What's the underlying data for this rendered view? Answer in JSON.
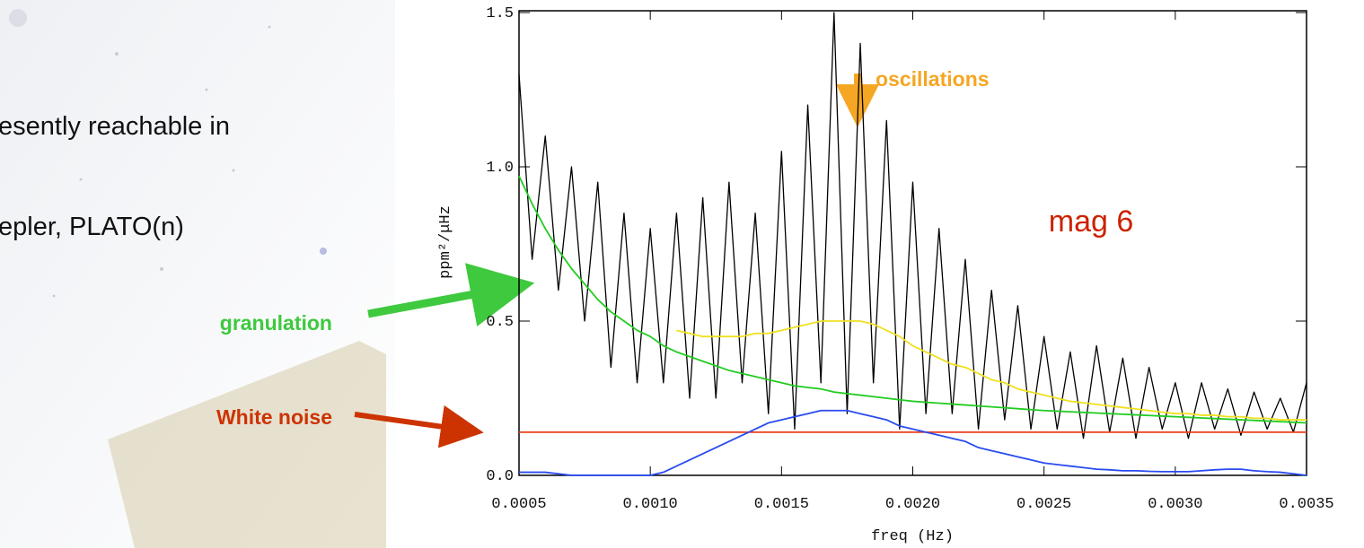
{
  "slide_text": [
    "esently reachable in",
    "epler, PLATO(n)"
  ],
  "chart_data": {
    "type": "line",
    "xlabel": "freq (Hz)",
    "ylabel": "ppm²/μHz",
    "annotations": [
      {
        "text": "oscillations",
        "color": "#f5a623"
      },
      {
        "text": "mag 6",
        "color": "#cc2200"
      },
      {
        "text": "granulation",
        "color": "#3ec93e"
      },
      {
        "text": "White noise",
        "color": "#cc3300"
      }
    ],
    "x": [
      0.0005,
      0.00055,
      0.0006,
      0.00065,
      0.0007,
      0.00075,
      0.0008,
      0.00085,
      0.0009,
      0.00095,
      0.001,
      0.00105,
      0.0011,
      0.00115,
      0.0012,
      0.00125,
      0.0013,
      0.00135,
      0.0014,
      0.00145,
      0.0015,
      0.00155,
      0.0016,
      0.00165,
      0.0017,
      0.00175,
      0.0018,
      0.00185,
      0.0019,
      0.00195,
      0.002,
      0.00205,
      0.0021,
      0.00215,
      0.0022,
      0.00225,
      0.0023,
      0.00235,
      0.0024,
      0.00245,
      0.0025,
      0.00255,
      0.0026,
      0.00265,
      0.0027,
      0.00275,
      0.0028,
      0.00285,
      0.0029,
      0.00295,
      0.003,
      0.00305,
      0.0031,
      0.00315,
      0.0032,
      0.00325,
      0.0033,
      0.00335,
      0.0034,
      0.00345,
      0.0035
    ],
    "series": [
      {
        "color": "#000000",
        "values": [
          1.3,
          0.7,
          1.1,
          0.6,
          1.0,
          0.5,
          0.95,
          0.35,
          0.85,
          0.3,
          0.8,
          0.3,
          0.85,
          0.25,
          0.9,
          0.25,
          0.95,
          0.3,
          0.85,
          0.2,
          1.05,
          0.15,
          1.2,
          0.3,
          1.5,
          0.2,
          1.4,
          0.3,
          1.15,
          0.15,
          0.95,
          0.2,
          0.8,
          0.2,
          0.7,
          0.15,
          0.6,
          0.18,
          0.55,
          0.15,
          0.45,
          0.15,
          0.4,
          0.12,
          0.42,
          0.14,
          0.38,
          0.12,
          0.35,
          0.15,
          0.3,
          0.12,
          0.3,
          0.15,
          0.28,
          0.13,
          0.27,
          0.15,
          0.25,
          0.14,
          0.3
        ]
      },
      {
        "color": "#e8401c",
        "values": [
          0.14,
          0.14,
          0.14,
          0.14,
          0.14,
          0.14,
          0.14,
          0.14,
          0.14,
          0.14,
          0.14,
          0.14,
          0.14,
          0.14,
          0.14,
          0.14,
          0.14,
          0.14,
          0.14,
          0.14,
          0.14,
          0.14,
          0.14,
          0.14,
          0.14,
          0.14,
          0.14,
          0.14,
          0.14,
          0.14,
          0.14,
          0.14,
          0.14,
          0.14,
          0.14,
          0.14,
          0.14,
          0.14,
          0.14,
          0.14,
          0.14,
          0.14,
          0.14,
          0.14,
          0.14,
          0.14,
          0.14,
          0.14,
          0.14,
          0.14,
          0.14,
          0.14,
          0.14,
          0.14,
          0.14,
          0.14,
          0.14,
          0.14,
          0.14,
          0.14,
          0.14
        ]
      },
      {
        "color": "#2a4bf0",
        "values": [
          0.01,
          0.01,
          0.01,
          0.005,
          0,
          0,
          0,
          0,
          0,
          0,
          0,
          0.01,
          0.03,
          0.05,
          0.07,
          0.09,
          0.11,
          0.13,
          0.15,
          0.17,
          0.18,
          0.19,
          0.2,
          0.21,
          0.21,
          0.21,
          0.2,
          0.19,
          0.18,
          0.16,
          0.15,
          0.14,
          0.13,
          0.12,
          0.11,
          0.09,
          0.08,
          0.07,
          0.06,
          0.05,
          0.04,
          0.035,
          0.03,
          0.025,
          0.02,
          0.018,
          0.015,
          0.015,
          0.013,
          0.012,
          0.012,
          0.012,
          0.015,
          0.018,
          0.02,
          0.02,
          0.015,
          0.012,
          0.01,
          0.005,
          0
        ]
      },
      {
        "color": "#22cc22",
        "values": [
          0.97,
          0.88,
          0.8,
          0.73,
          0.67,
          0.62,
          0.57,
          0.53,
          0.5,
          0.47,
          0.45,
          0.42,
          0.4,
          0.385,
          0.37,
          0.355,
          0.34,
          0.33,
          0.32,
          0.31,
          0.3,
          0.29,
          0.285,
          0.28,
          0.27,
          0.265,
          0.26,
          0.255,
          0.25,
          0.245,
          0.24,
          0.237,
          0.234,
          0.231,
          0.228,
          0.225,
          0.222,
          0.219,
          0.216,
          0.213,
          0.21,
          0.208,
          0.206,
          0.204,
          0.202,
          0.2,
          0.198,
          0.196,
          0.194,
          0.192,
          0.19,
          0.188,
          0.186,
          0.184,
          0.182,
          0.18,
          0.178,
          0.176,
          0.174,
          0.172,
          0.17
        ]
      },
      {
        "color": "#f0e020",
        "values": [
          null,
          null,
          null,
          null,
          null,
          null,
          null,
          null,
          null,
          null,
          null,
          null,
          0.47,
          0.46,
          0.45,
          0.45,
          0.45,
          0.45,
          0.46,
          0.46,
          0.47,
          0.48,
          0.49,
          0.5,
          0.5,
          0.5,
          0.5,
          0.49,
          0.47,
          0.45,
          0.42,
          0.4,
          0.38,
          0.36,
          0.35,
          0.33,
          0.31,
          0.3,
          0.28,
          0.27,
          0.26,
          0.25,
          0.24,
          0.235,
          0.23,
          0.225,
          0.22,
          0.215,
          0.21,
          0.205,
          0.2,
          0.2,
          0.195,
          0.195,
          0.19,
          0.19,
          0.185,
          0.185,
          0.18,
          0.18,
          0.18
        ]
      }
    ],
    "xlim": [
      0.0005,
      0.0035
    ],
    "xticks": [
      0.0005,
      {
        "value": 0.001,
        "label": "0.0010"
      },
      0.0015,
      {
        "value": 0.002,
        "label": "0.0020"
      },
      0.0025,
      {
        "value": 0.003,
        "label": "0.0030"
      },
      0.0035
    ],
    "ylim": [
      0,
      1.5
    ],
    "yticks": [
      {
        "value": 0,
        "label": "0.0"
      },
      0.5,
      {
        "value": 1,
        "label": "1.0"
      },
      1.5
    ],
    "grid": false
  }
}
